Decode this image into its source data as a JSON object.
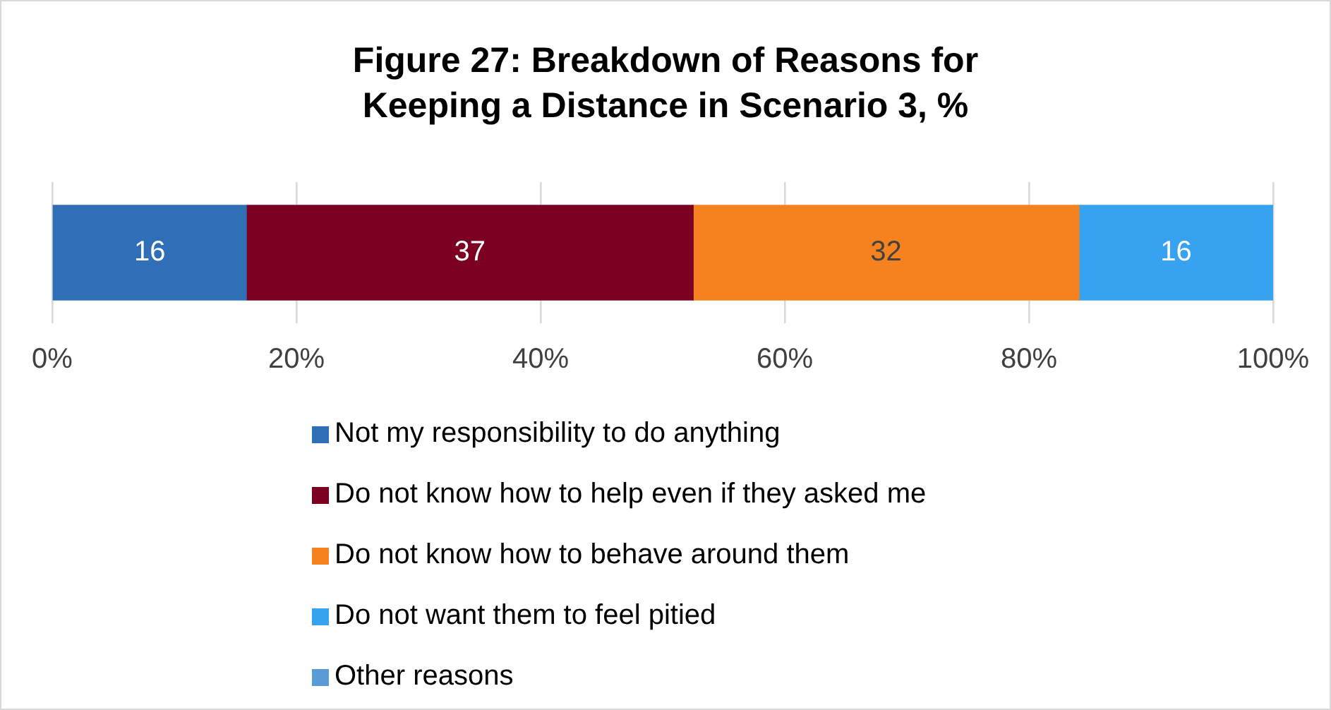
{
  "chart_data": {
    "type": "bar",
    "orientation": "horizontal",
    "stacked": true,
    "title": "Figure 27: Breakdown of Reasons for Keeping a Distance in Scenario 3, %",
    "categories": [
      null
    ],
    "series": [
      {
        "name": "Not my responsibility to do anything",
        "color": "#2e6fb7",
        "values": [
          15.9
        ],
        "value_labels": [
          "16"
        ]
      },
      {
        "name": "Do not know how to help even if they asked me",
        "color": "#7b0021",
        "values": [
          36.6
        ],
        "value_labels": [
          "37"
        ]
      },
      {
        "name": "Do not know how to behave around them",
        "color": "#f5821f",
        "values": [
          31.6
        ],
        "value_labels": [
          "32"
        ]
      },
      {
        "name": "Do not want them to feel pitied",
        "color": "#37a2ef",
        "values": [
          15.9
        ],
        "value_labels": [
          "16"
        ]
      },
      {
        "name": "Other reasons",
        "color": "#5b9bd5",
        "values": [
          0
        ],
        "value_labels": [
          null
        ]
      }
    ],
    "xlim": [
      0,
      100
    ],
    "xticks": [
      {
        "value": 0,
        "label": "0%"
      },
      {
        "value": 20,
        "label": "20%"
      },
      {
        "value": 40,
        "label": "40%"
      },
      {
        "value": 60,
        "label": "60%"
      },
      {
        "value": 80,
        "label": "80%"
      },
      {
        "value": 100,
        "label": "100%"
      }
    ],
    "grid": "x",
    "legend": "bottom"
  }
}
